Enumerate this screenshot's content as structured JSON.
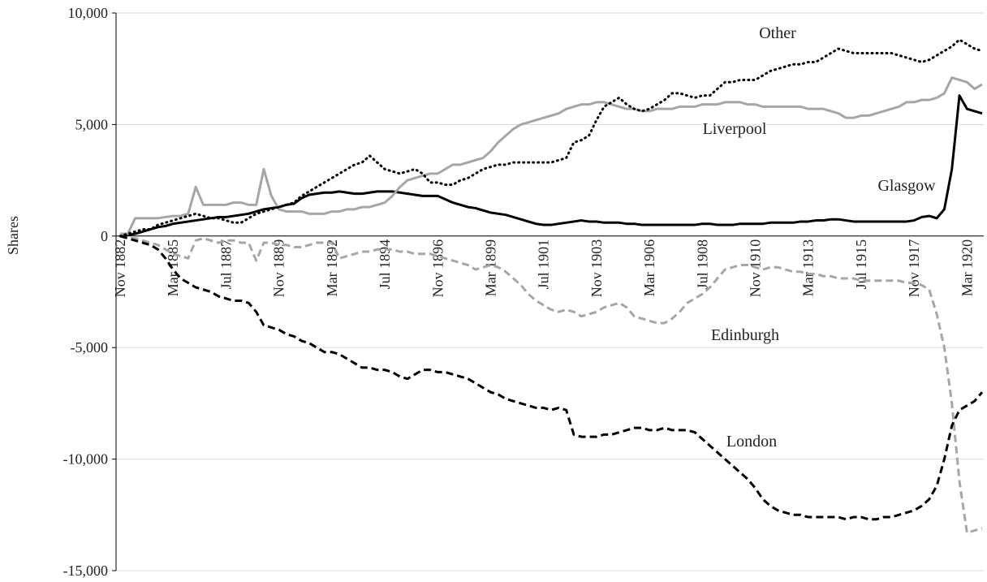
{
  "chart_data": {
    "type": "line",
    "y_label": "Shares",
    "categories": [
      "Nov 1882",
      null,
      null,
      null,
      null,
      null,
      null,
      "Mar 1885",
      null,
      null,
      null,
      null,
      null,
      null,
      "Jul 1887",
      null,
      null,
      null,
      null,
      null,
      null,
      "Nov 1889",
      null,
      null,
      null,
      null,
      null,
      null,
      "Mar 1892",
      null,
      null,
      null,
      null,
      null,
      null,
      "Jul 1894",
      null,
      null,
      null,
      null,
      null,
      null,
      "Nov 1896",
      null,
      null,
      null,
      null,
      null,
      null,
      "Mar 1899",
      null,
      null,
      null,
      null,
      null,
      null,
      "Jul 1901",
      null,
      null,
      null,
      null,
      null,
      null,
      "Nov 1903",
      null,
      null,
      null,
      null,
      null,
      null,
      "Mar 1906",
      null,
      null,
      null,
      null,
      null,
      null,
      "Jul 1908",
      null,
      null,
      null,
      null,
      null,
      null,
      "Nov 1910",
      null,
      null,
      null,
      null,
      null,
      null,
      "Mar 1913",
      null,
      null,
      null,
      null,
      null,
      null,
      "Jul 1915",
      null,
      null,
      null,
      null,
      null,
      null,
      "Nov 1917",
      null,
      null,
      null,
      null,
      null,
      null,
      "Mar 1920",
      null,
      null
    ],
    "series": [
      {
        "name": "Glasgow",
        "color": "#000000",
        "style": "solid",
        "values": [
          0,
          50,
          100,
          200,
          300,
          400,
          450,
          550,
          600,
          650,
          700,
          750,
          800,
          850,
          850,
          900,
          950,
          1000,
          1100,
          1200,
          1250,
          1300,
          1400,
          1450,
          1700,
          1850,
          1900,
          1950,
          1950,
          2000,
          1950,
          1900,
          1900,
          1950,
          2000,
          2000,
          2000,
          1950,
          1900,
          1850,
          1800,
          1800,
          1800,
          1650,
          1500,
          1400,
          1300,
          1250,
          1150,
          1050,
          1000,
          950,
          850,
          750,
          650,
          550,
          500,
          500,
          550,
          600,
          650,
          700,
          650,
          650,
          600,
          600,
          600,
          550,
          550,
          500,
          500,
          500,
          500,
          500,
          500,
          500,
          500,
          550,
          550,
          500,
          500,
          500,
          550,
          550,
          550,
          550,
          600,
          600,
          600,
          600,
          650,
          650,
          700,
          700,
          750,
          750,
          700,
          650,
          650,
          650,
          650,
          650,
          650,
          650,
          650,
          700,
          850,
          900,
          800,
          1200,
          3000,
          6300,
          5700,
          5600,
          5500
        ]
      },
      {
        "name": "Liverpool",
        "color": "#a6a6a6",
        "style": "solid",
        "values": [
          100,
          100,
          800,
          800,
          800,
          800,
          850,
          900,
          900,
          1000,
          2200,
          1400,
          1400,
          1400,
          1400,
          1500,
          1500,
          1400,
          1400,
          3000,
          1800,
          1200,
          1100,
          1100,
          1100,
          1000,
          1000,
          1000,
          1100,
          1100,
          1200,
          1200,
          1300,
          1300,
          1400,
          1500,
          1800,
          2200,
          2500,
          2600,
          2700,
          2800,
          2800,
          3000,
          3200,
          3200,
          3300,
          3400,
          3500,
          3800,
          4200,
          4500,
          4800,
          5000,
          5100,
          5200,
          5300,
          5400,
          5500,
          5700,
          5800,
          5900,
          5900,
          6000,
          6000,
          5900,
          5800,
          5700,
          5700,
          5600,
          5600,
          5700,
          5700,
          5700,
          5800,
          5800,
          5800,
          5900,
          5900,
          5900,
          6000,
          6000,
          6000,
          5900,
          5900,
          5800,
          5800,
          5800,
          5800,
          5800,
          5800,
          5700,
          5700,
          5700,
          5600,
          5500,
          5300,
          5300,
          5400,
          5400,
          5500,
          5600,
          5700,
          5800,
          6000,
          6000,
          6100,
          6100,
          6200,
          6400,
          7100,
          7000,
          6900,
          6600,
          6800
        ]
      },
      {
        "name": "Other",
        "color": "#000000",
        "style": "dotted",
        "values": [
          0,
          100,
          200,
          300,
          300,
          500,
          600,
          700,
          800,
          900,
          1000,
          900,
          800,
          800,
          700,
          600,
          600,
          800,
          1000,
          1100,
          1200,
          1300,
          1400,
          1500,
          1800,
          2000,
          2200,
          2400,
          2600,
          2800,
          3000,
          3200,
          3300,
          3600,
          3300,
          3000,
          2900,
          2800,
          2900,
          3000,
          2800,
          2400,
          2400,
          2300,
          2300,
          2500,
          2600,
          2800,
          3000,
          3100,
          3200,
          3200,
          3300,
          3300,
          3300,
          3300,
          3300,
          3300,
          3400,
          3500,
          4200,
          4300,
          4500,
          5200,
          5800,
          6000,
          6200,
          5900,
          5700,
          5600,
          5700,
          5900,
          6100,
          6400,
          6400,
          6300,
          6200,
          6300,
          6300,
          6600,
          6900,
          6900,
          7000,
          7000,
          7000,
          7200,
          7400,
          7500,
          7600,
          7700,
          7700,
          7800,
          7800,
          8000,
          8200,
          8400,
          8300,
          8200,
          8200,
          8200,
          8200,
          8200,
          8200,
          8100,
          8000,
          7900,
          7800,
          7900,
          8100,
          8300,
          8500,
          8800,
          8600,
          8400,
          8300
        ]
      },
      {
        "name": "Edinburgh",
        "color": "#a6a6a6",
        "style": "dashed",
        "values": [
          0,
          -100,
          -100,
          -200,
          -300,
          -400,
          -600,
          -800,
          -900,
          -1000,
          -200,
          -100,
          -200,
          -300,
          -200,
          -200,
          -300,
          -300,
          -1100,
          -300,
          -300,
          -400,
          -400,
          -500,
          -500,
          -400,
          -300,
          -300,
          -300,
          -1000,
          -900,
          -800,
          -700,
          -700,
          -600,
          -600,
          -600,
          -700,
          -700,
          -800,
          -800,
          -800,
          -900,
          -1000,
          -1100,
          -1200,
          -1300,
          -1500,
          -1400,
          -1300,
          -1400,
          -1600,
          -1900,
          -2200,
          -2600,
          -2900,
          -3100,
          -3300,
          -3400,
          -3300,
          -3400,
          -3600,
          -3500,
          -3400,
          -3200,
          -3100,
          -3000,
          -3200,
          -3600,
          -3700,
          -3800,
          -3900,
          -3900,
          -3700,
          -3400,
          -3000,
          -2800,
          -2600,
          -2300,
          -1900,
          -1500,
          -1400,
          -1300,
          -1300,
          -1400,
          -1500,
          -1400,
          -1400,
          -1500,
          -1600,
          -1600,
          -1700,
          -1700,
          -1800,
          -1800,
          -1900,
          -1900,
          -1900,
          -2000,
          -2000,
          -2000,
          -2000,
          -2000,
          -2000,
          -2100,
          -2100,
          -2200,
          -2400,
          -3500,
          -5000,
          -7500,
          -11000,
          -13300,
          -13200,
          -13100
        ]
      },
      {
        "name": "London",
        "color": "#000000",
        "style": "dashed",
        "values": [
          0,
          -100,
          -200,
          -300,
          -400,
          -600,
          -1000,
          -1500,
          -1900,
          -2100,
          -2300,
          -2400,
          -2500,
          -2700,
          -2800,
          -2900,
          -2900,
          -3000,
          -3400,
          -4000,
          -4100,
          -4200,
          -4400,
          -4500,
          -4700,
          -4800,
          -5000,
          -5200,
          -5200,
          -5300,
          -5500,
          -5700,
          -5900,
          -5900,
          -6000,
          -6000,
          -6100,
          -6300,
          -6400,
          -6200,
          -6000,
          -6000,
          -6100,
          -6100,
          -6200,
          -6300,
          -6400,
          -6600,
          -6800,
          -7000,
          -7100,
          -7300,
          -7400,
          -7500,
          -7600,
          -7700,
          -7700,
          -7800,
          -7700,
          -7800,
          -8900,
          -9000,
          -9000,
          -9000,
          -8900,
          -8900,
          -8800,
          -8700,
          -8600,
          -8600,
          -8700,
          -8700,
          -8600,
          -8700,
          -8700,
          -8700,
          -8800,
          -9100,
          -9400,
          -9700,
          -10000,
          -10300,
          -10600,
          -10900,
          -11300,
          -11800,
          -12100,
          -12300,
          -12400,
          -12500,
          -12500,
          -12600,
          -12600,
          -12600,
          -12600,
          -12600,
          -12700,
          -12600,
          -12600,
          -12700,
          -12700,
          -12600,
          -12600,
          -12500,
          -12400,
          -12300,
          -12100,
          -11800,
          -11200,
          -10000,
          -8500,
          -7800,
          -7600,
          -7400,
          -7000
        ]
      }
    ],
    "ylim": [
      -15000,
      10000
    ],
    "yticks": [
      {
        "value": -15000,
        "label": "-15,000"
      },
      {
        "value": -10000,
        "label": "-10,000"
      },
      {
        "value": -5000,
        "label": "-5,000"
      },
      0,
      {
        "value": 5000,
        "label": "5,000"
      },
      {
        "value": 10000,
        "label": "10,000"
      }
    ],
    "grid": true
  }
}
